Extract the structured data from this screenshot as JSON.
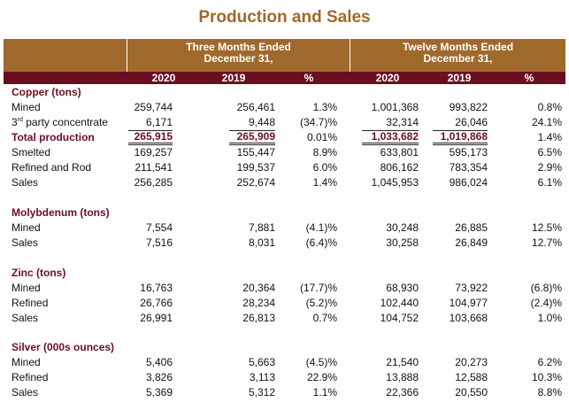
{
  "title": "Production and Sales",
  "header": {
    "three_months": "Three Months Ended",
    "twelve_months": "Twelve Months Ended",
    "period": "December 31,",
    "cols": [
      "2020",
      "2019",
      "%",
      "2020",
      "2019",
      "%"
    ]
  },
  "sections": [
    {
      "name": "Copper (tons)",
      "rows": [
        {
          "label": "Mined",
          "v": [
            "259,744",
            "256,461",
            "1.3%",
            "1,001,368",
            "993,822",
            "0.8%"
          ]
        },
        {
          "label_main": "3",
          "label_sup": "rd",
          "label_rest": " party concentrate",
          "v": [
            "6,171",
            "9,448",
            "(34.7)%",
            "32,314",
            "26,046",
            "24.1%"
          ]
        },
        {
          "label": "Total production",
          "v": [
            "265,915",
            "265,909",
            "0.01%",
            "1,033,682",
            "1,019,868",
            "1.4%"
          ]
        },
        {
          "label": "Smelted",
          "v": [
            "169,257",
            "155,447",
            "8.9%",
            "633,801",
            "595,173",
            "6.5%"
          ]
        },
        {
          "label": "Refined and Rod",
          "v": [
            "211,541",
            "199,537",
            "6.0%",
            "806,162",
            "783,354",
            "2.9%"
          ]
        },
        {
          "label": "Sales",
          "v": [
            "256,285",
            "252,674",
            "1.4%",
            "1,045,953",
            "986,024",
            "6.1%"
          ]
        }
      ]
    },
    {
      "name": "Molybdenum (tons)",
      "rows": [
        {
          "label": "Mined",
          "v": [
            "7,554",
            "7,881",
            "(4.1)%",
            "30,248",
            "26,885",
            "12.5%"
          ]
        },
        {
          "label": "Sales",
          "v": [
            "7,516",
            "8,031",
            "(6.4)%",
            "30,258",
            "26,849",
            "12.7%"
          ]
        }
      ]
    },
    {
      "name": "Zinc (tons)",
      "rows": [
        {
          "label": "Mined",
          "v": [
            "16,763",
            "20,364",
            "(17.7)%",
            "68,930",
            "73,922",
            "(6.8)%"
          ]
        },
        {
          "label": "Refined",
          "v": [
            "26,766",
            "28,234",
            "(5.2)%",
            "102,440",
            "104,977",
            "(2.4)%"
          ]
        },
        {
          "label": "Sales",
          "v": [
            "26,991",
            "26,813",
            "0.7%",
            "104,752",
            "103,668",
            "1.0%"
          ]
        }
      ]
    },
    {
      "name": "Silver (000s ounces)",
      "rows": [
        {
          "label": "Mined",
          "v": [
            "5,406",
            "5,663",
            "(4.5)%",
            "21,540",
            "20,273",
            "6.2%"
          ]
        },
        {
          "label": "Refined",
          "v": [
            "3,826",
            "3,113",
            "22.9%",
            "13,888",
            "12,588",
            "10.3%"
          ]
        },
        {
          "label": "Sales",
          "v": [
            "5,369",
            "5,312",
            "1.1%",
            "22,366",
            "20,550",
            "8.8%"
          ]
        }
      ]
    }
  ],
  "colors": {
    "title": "#a0692c",
    "header_band": "#a0692c",
    "header_row": "#6a0f22",
    "section_label": "#6a0f22"
  }
}
